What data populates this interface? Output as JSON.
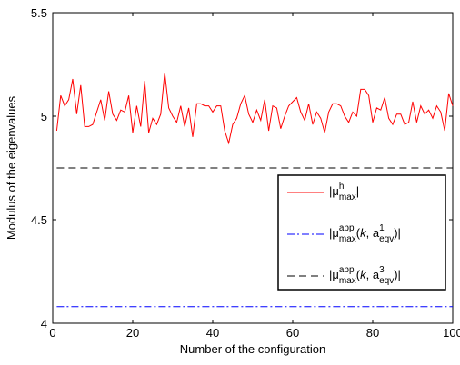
{
  "chart_data": {
    "type": "line",
    "xlabel": "Number of the configuration",
    "ylabel": "Modulus of the eigenvalues",
    "xlim": [
      0,
      100
    ],
    "ylim": [
      4,
      5.5
    ],
    "xticks": [
      0,
      20,
      40,
      60,
      80,
      100
    ],
    "yticks": [
      4,
      4.5,
      5,
      5.5
    ],
    "xtick_labels": [
      "0",
      "20",
      "40",
      "60",
      "80",
      "100"
    ],
    "ytick_labels": [
      "4",
      "4.5",
      "5",
      "5.5"
    ],
    "grid": false,
    "legend_position": "center-right",
    "series": [
      {
        "name": "|μ_max^h|",
        "legend": {
          "pre": "|μ",
          "sup": "h",
          "sub": "max",
          "post": "|"
        },
        "style": "solid",
        "color": "#ff0000",
        "x": [
          1,
          2,
          3,
          4,
          5,
          6,
          7,
          8,
          9,
          10,
          11,
          12,
          13,
          14,
          15,
          16,
          17,
          18,
          19,
          20,
          21,
          22,
          23,
          24,
          25,
          26,
          27,
          28,
          29,
          30,
          31,
          32,
          33,
          34,
          35,
          36,
          37,
          38,
          39,
          40,
          41,
          42,
          43,
          44,
          45,
          46,
          47,
          48,
          49,
          50,
          51,
          52,
          53,
          54,
          55,
          56,
          57,
          58,
          59,
          60,
          61,
          62,
          63,
          64,
          65,
          66,
          67,
          68,
          69,
          70,
          71,
          72,
          73,
          74,
          75,
          76,
          77,
          78,
          79,
          80,
          81,
          82,
          83,
          84,
          85,
          86,
          87,
          88,
          89,
          90,
          91,
          92,
          93,
          94,
          95,
          96,
          97,
          98,
          99,
          100
        ],
        "values": [
          4.93,
          5.1,
          5.05,
          5.08,
          5.18,
          5.01,
          5.15,
          4.95,
          4.95,
          4.96,
          5.02,
          5.08,
          4.98,
          5.12,
          5.01,
          4.98,
          5.03,
          5.02,
          5.1,
          4.92,
          5.05,
          4.95,
          5.17,
          4.92,
          4.99,
          4.96,
          5.01,
          5.21,
          5.04,
          5.0,
          4.97,
          5.05,
          4.95,
          5.04,
          4.9,
          5.06,
          5.06,
          5.05,
          5.05,
          5.02,
          5.05,
          5.05,
          4.93,
          4.87,
          4.96,
          4.99,
          5.06,
          5.1,
          5.01,
          4.97,
          5.03,
          4.98,
          5.08,
          4.93,
          5.05,
          5.04,
          4.94,
          5.0,
          5.05,
          5.07,
          5.09,
          5.02,
          4.98,
          5.06,
          4.96,
          5.02,
          4.99,
          4.92,
          5.02,
          5.06,
          5.06,
          5.05,
          5.0,
          4.97,
          5.02,
          5.0,
          5.13,
          5.13,
          5.1,
          4.97,
          5.04,
          5.03,
          5.09,
          4.99,
          4.96,
          5.01,
          5.01,
          4.96,
          4.97,
          5.07,
          4.97,
          5.05,
          5.01,
          5.03,
          4.99,
          5.05,
          5.02,
          4.93,
          5.11,
          5.05
        ]
      },
      {
        "name": "|μ_max^app(k, a_eqv^1)|",
        "legend": {
          "pre": "|μ",
          "sup": "app",
          "sub": "max",
          "mid": "(k, a",
          "sup2": "1",
          "sub2": "eqv",
          "post": ")|"
        },
        "style": "dashdot",
        "color": "#0000ff",
        "x": [
          1,
          100
        ],
        "values": [
          4.08,
          4.08
        ]
      },
      {
        "name": "|μ_max^app(k, a_eqv^3)|",
        "legend": {
          "pre": "|μ",
          "sup": "app",
          "sub": "max",
          "mid": "(k, a",
          "sup2": "3",
          "sub2": "eqv",
          "post": ")|"
        },
        "style": "dashed",
        "color": "#000000",
        "x": [
          1,
          100
        ],
        "values": [
          4.75,
          4.75
        ]
      }
    ]
  }
}
